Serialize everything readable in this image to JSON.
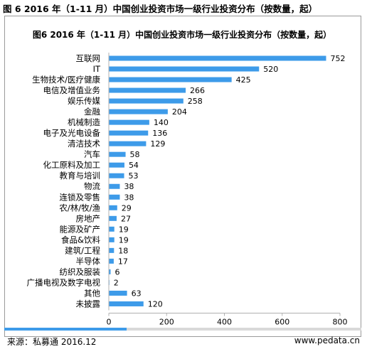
{
  "header": {
    "outer_title": "图 6 2016 年（1-11 月）中国创业投资市场一级行业投资分布（按数量，起）"
  },
  "footer": {
    "source": "来源：私募通 2016.12",
    "website": "www.pedata.cn"
  },
  "colors": {
    "bar": "#3d9be9",
    "axis": "#b0b0b0",
    "accent": "#3d9be9"
  },
  "chart_data": {
    "type": "bar",
    "orientation": "horizontal",
    "title": "图6  2016 年（1-11 月）中国创业投资市场一级行业投资分布（按数量，起）",
    "categories": [
      "互联网",
      "IT",
      "生物技术/医疗健康",
      "电信及增值业务",
      "娱乐传媒",
      "金融",
      "机械制造",
      "电子及光电设备",
      "清洁技术",
      "汽车",
      "化工原料及加工",
      "教育与培训",
      "物流",
      "连锁及零售",
      "农/林/牧/渔",
      "房地产",
      "能源及矿产",
      "食品&饮料",
      "建筑/工程",
      "半导体",
      "纺织及服装",
      "广播电视及数字电视",
      "其他",
      "未披露"
    ],
    "values": [
      752,
      520,
      425,
      266,
      258,
      204,
      140,
      136,
      129,
      58,
      54,
      53,
      38,
      38,
      29,
      27,
      19,
      19,
      18,
      17,
      6,
      2,
      63,
      120
    ],
    "xlim": [
      0,
      800
    ],
    "xticks": [
      0,
      200,
      400,
      600,
      800
    ],
    "xlabel": "",
    "ylabel": "",
    "grid": false,
    "legend": "none"
  }
}
